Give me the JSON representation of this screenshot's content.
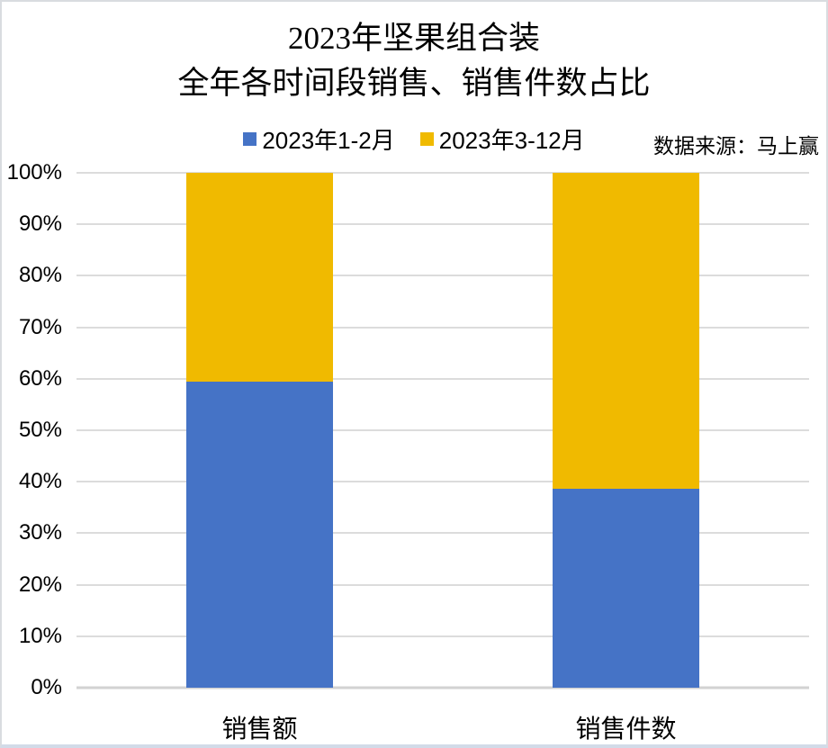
{
  "title": {
    "line1": "2023年坚果组合装",
    "line2": "全年各时间段销售、销售件数占比"
  },
  "source_note": "数据来源：马上赢",
  "colors": {
    "series1": "#4573C6",
    "series2": "#F0BA00",
    "gridline": "#DCDCDC",
    "axis_line": "#D2D2D2",
    "background": "#FFFFFF"
  },
  "chart_data": {
    "type": "bar",
    "subtype": "stacked-100-percent",
    "title": "2023年坚果组合装 全年各时间段销售、销售件数占比",
    "categories": [
      "销售额",
      "销售件数"
    ],
    "series": [
      {
        "name": "2023年1-2月",
        "color": "#4573C6",
        "values": [
          59.4,
          38.6
        ]
      },
      {
        "name": "2023年3-12月",
        "color": "#F0BA00",
        "values": [
          40.6,
          61.4
        ]
      }
    ],
    "xlabel": "",
    "ylabel": "",
    "ylim": [
      0,
      100
    ],
    "grid": true,
    "legend_position": "top",
    "yticks": [
      {
        "value": 0,
        "label": "0%"
      },
      {
        "value": 10,
        "label": "10%"
      },
      {
        "value": 20,
        "label": "20%"
      },
      {
        "value": 30,
        "label": "30%"
      },
      {
        "value": 40,
        "label": "40%"
      },
      {
        "value": 50,
        "label": "50%"
      },
      {
        "value": 60,
        "label": "60%"
      },
      {
        "value": 70,
        "label": "70%"
      },
      {
        "value": 80,
        "label": "80%"
      },
      {
        "value": 90,
        "label": "90%"
      },
      {
        "value": 100,
        "label": "100%"
      }
    ]
  }
}
